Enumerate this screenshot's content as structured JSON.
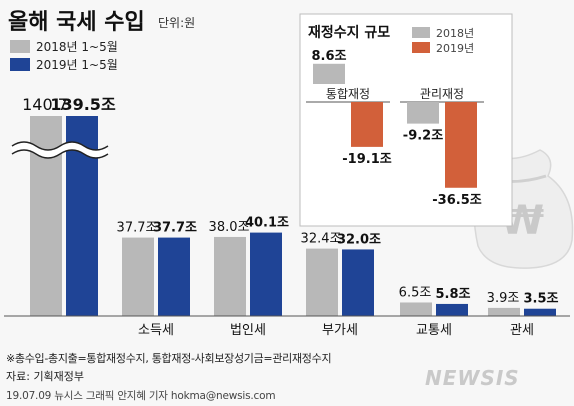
{
  "title": "올해 국세 수입",
  "unit": "단위:원",
  "legend": [
    {
      "name": "2018년 1~5월",
      "color": "#b8b8b8"
    },
    {
      "name": "2019년 1~5월",
      "color": "#1f4496"
    }
  ],
  "chart_data": [
    {
      "type": "bar",
      "categories": [
        "국세수입",
        "소득세",
        "법인세",
        "부가세",
        "교통세",
        "관세"
      ],
      "series": [
        {
          "name": "2018년 1~5월",
          "values": [
            140.7,
            37.7,
            38.0,
            32.4,
            6.5,
            3.9
          ],
          "labels": [
            "140.7",
            "37.7조",
            "38.0조",
            "32.4조",
            "6.5조",
            "3.9조"
          ]
        },
        {
          "name": "2019년 1~5월",
          "values": [
            139.5,
            37.7,
            40.1,
            32.0,
            5.8,
            3.5
          ],
          "labels": [
            "139.5조",
            "37.7조",
            "40.1조",
            "32.0조",
            "5.8조",
            "3.5조"
          ]
        }
      ],
      "axis_break": true
    },
    {
      "type": "bar",
      "title": "재정수지 규모",
      "categories": [
        "통합재정",
        "관리재정"
      ],
      "series": [
        {
          "name": "2018년",
          "values": [
            8.6,
            -9.2
          ],
          "labels": [
            "8.6조",
            "-9.2조"
          ]
        },
        {
          "name": "2019년",
          "values": [
            -19.1,
            -36.5
          ],
          "labels": [
            "-19.1조",
            "-36.5조"
          ]
        }
      ],
      "legend": [
        {
          "name": "2018년",
          "color": "#b8b8b8"
        },
        {
          "name": "2019년",
          "color": "#d2603a"
        }
      ]
    }
  ],
  "footnote": "※총수입-총지출=통합재정수지, 통합재정-사회보장성기금=관리재정수지",
  "source": "자료: 기획재정부",
  "credit": "19.07.09 뉴시스 그래픽 안지혜 기자 hokma@newsis.com",
  "watermark": "NEWSIS",
  "icon": "money-bag-won-icon",
  "icon_symbol": "₩",
  "colors": {
    "gray": "#b8b8b8",
    "blue": "#1f4496",
    "orange": "#d2603a",
    "accent": "#e0452a"
  }
}
